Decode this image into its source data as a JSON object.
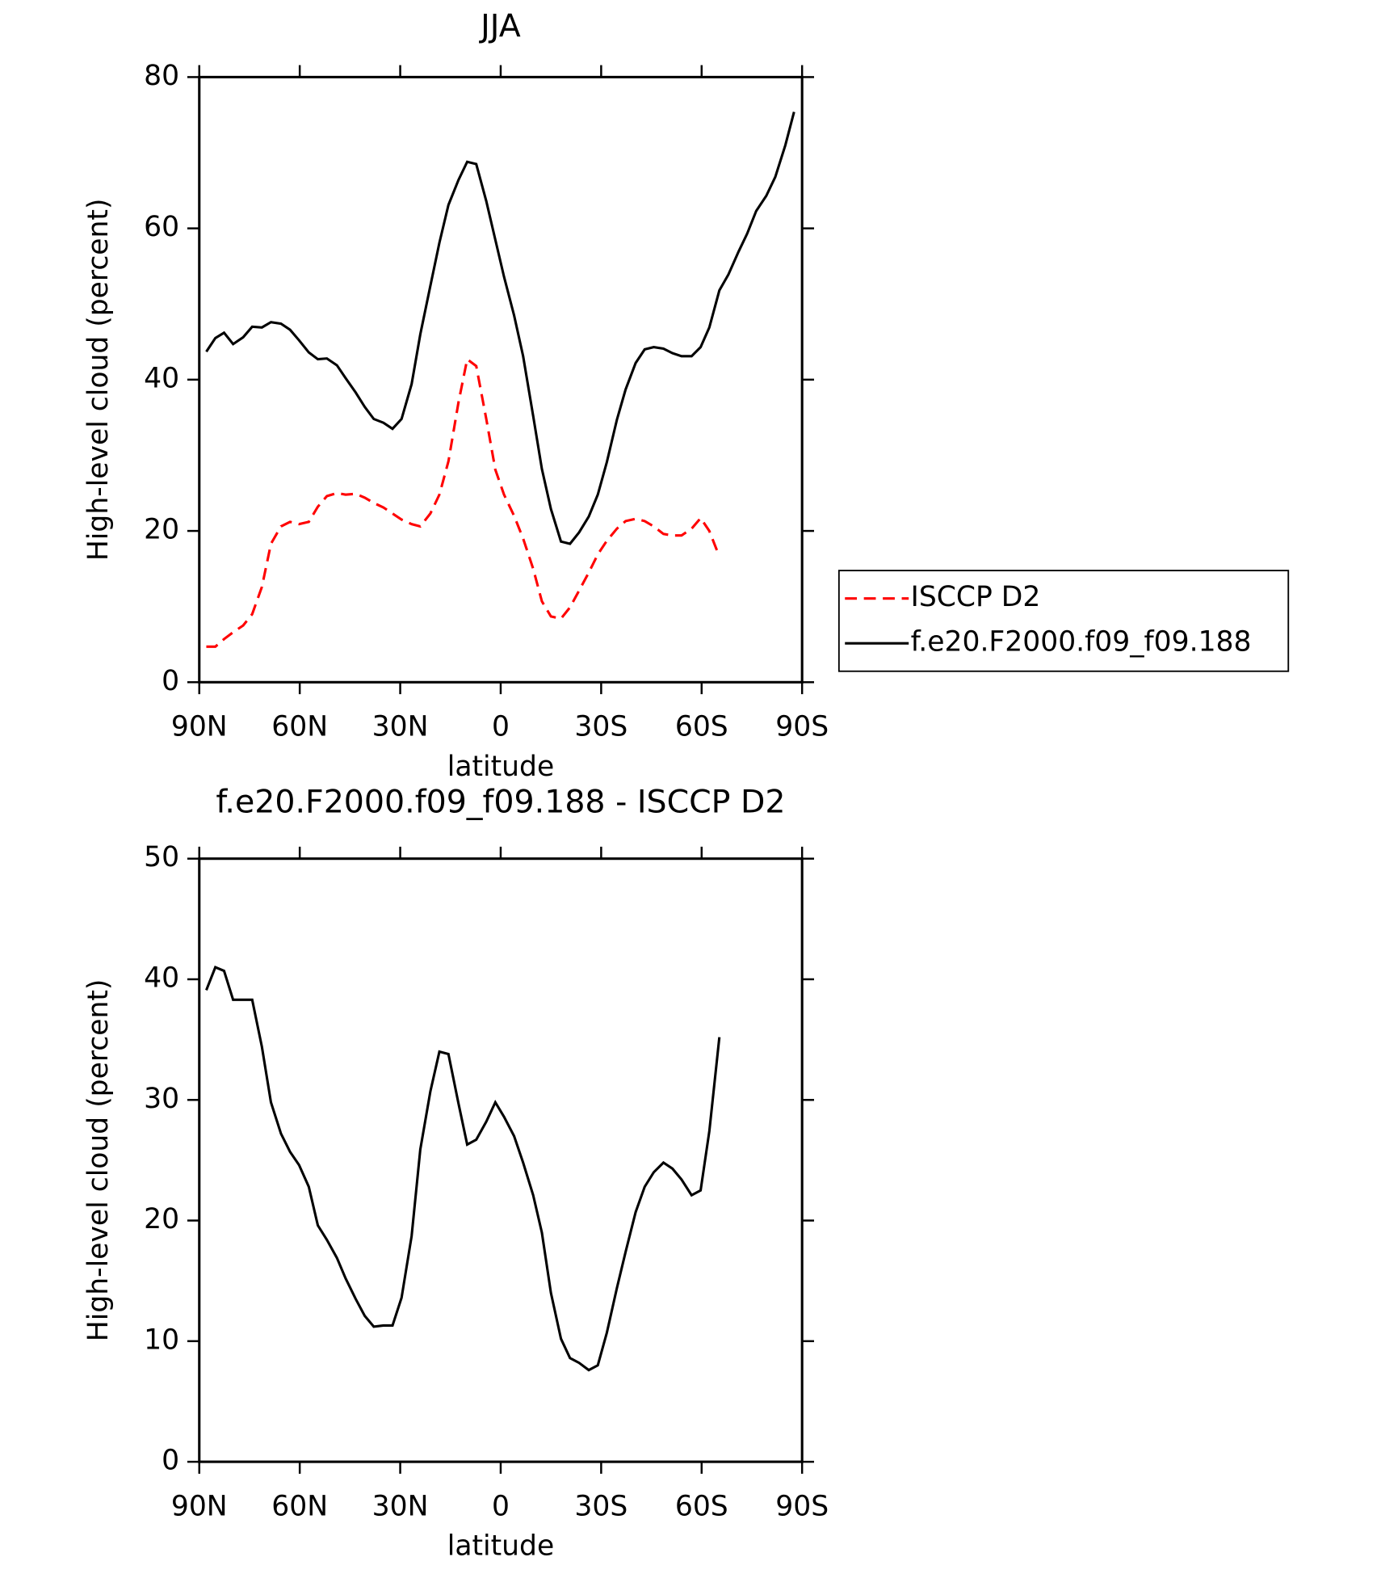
{
  "chart_data": [
    {
      "type": "line",
      "title": "JJA",
      "xlabel": "latitude",
      "ylabel": "High-level cloud (percent)",
      "x": [
        87.9,
        85.2,
        82.6,
        79.9,
        76.9,
        74.2,
        71.3,
        68.6,
        65.6,
        62.9,
        60.2,
        57.3,
        54.6,
        51.9,
        48.9,
        46.3,
        43.3,
        40.6,
        37.9,
        35.0,
        32.3,
        29.6,
        26.6,
        24.0,
        21.0,
        18.3,
        15.6,
        12.6,
        10.0,
        7.3,
        4.3,
        1.6,
        -1.0,
        -4.0,
        -6.7,
        -9.7,
        -12.3,
        -15.0,
        -18.0,
        -20.7,
        -23.4,
        -26.3,
        -29.0,
        -31.7,
        -34.7,
        -37.3,
        -40.3,
        -43.0,
        -45.7,
        -48.6,
        -51.3,
        -54.0,
        -57.0,
        -59.7,
        -62.3,
        -65.3,
        -68.0,
        -71.0,
        -73.6,
        -76.3,
        -79.3,
        -82.0,
        -85.0,
        -87.6
      ],
      "series": [
        {
          "name": "ISCCP D2",
          "color": "#ff0000",
          "dashed": true,
          "values": [
            4.7,
            4.7,
            5.7,
            6.6,
            7.5,
            9.0,
            12.6,
            18.3,
            20.6,
            21.2,
            20.9,
            21.2,
            23.2,
            24.6,
            25.0,
            24.8,
            24.9,
            24.4,
            23.7,
            23.1,
            22.3,
            21.5,
            20.9,
            20.6,
            22.3,
            24.8,
            29.2,
            37.0,
            42.7,
            41.8,
            34.8,
            28.1,
            24.8,
            22.0,
            19.0,
            15.0,
            10.7,
            8.7,
            8.4,
            9.9,
            12.1,
            14.5,
            16.9,
            18.7,
            20.3,
            21.3,
            21.6,
            21.3,
            20.6,
            19.6,
            19.4,
            19.4,
            20.3,
            21.7,
            20.0,
            16.6,
            null,
            null,
            null,
            null,
            null,
            null,
            null,
            null
          ]
        },
        {
          "name": "f.e20.F2000.f09_f09.188",
          "color": "#000000",
          "dashed": false,
          "values": [
            43.7,
            45.5,
            46.2,
            44.7,
            45.6,
            47.0,
            46.9,
            47.6,
            47.4,
            46.6,
            45.2,
            43.6,
            42.7,
            42.8,
            41.9,
            40.2,
            38.3,
            36.4,
            34.8,
            34.3,
            33.5,
            34.8,
            39.4,
            46.0,
            52.4,
            58.1,
            63.1,
            66.4,
            68.8,
            68.5,
            63.6,
            58.5,
            53.6,
            48.5,
            43.1,
            35.2,
            28.2,
            22.9,
            18.6,
            18.3,
            19.8,
            21.9,
            24.8,
            29.1,
            34.7,
            38.7,
            42.2,
            44.0,
            44.3,
            44.1,
            43.5,
            43.1,
            43.1,
            44.3,
            46.9,
            51.8,
            53.9,
            56.9,
            59.3,
            62.3,
            64.3,
            66.8,
            71.0,
            75.4
          ]
        }
      ],
      "xlim": [
        90,
        -90
      ],
      "ylim": [
        0,
        80
      ],
      "xticks": [
        {
          "value": 90,
          "label": "90N"
        },
        {
          "value": 60,
          "label": "60N"
        },
        {
          "value": 30,
          "label": "30N"
        },
        0,
        {
          "value": -30,
          "label": "30S"
        },
        {
          "value": -60,
          "label": "60S"
        },
        {
          "value": -90,
          "label": "90S"
        }
      ],
      "yticks": [
        0,
        20,
        40,
        60,
        80
      ],
      "legend": "right"
    },
    {
      "type": "line",
      "title": "f.e20.F2000.f09_f09.188 - ISCCP D2",
      "xlabel": "latitude",
      "ylabel": "High-level cloud (percent)",
      "x": [
        87.9,
        85.2,
        82.6,
        79.9,
        76.9,
        74.2,
        71.3,
        68.6,
        65.6,
        62.9,
        60.2,
        57.3,
        54.6,
        51.9,
        48.9,
        46.3,
        43.3,
        40.6,
        37.9,
        35.0,
        32.3,
        29.6,
        26.6,
        24.0,
        21.0,
        18.3,
        15.6,
        12.6,
        10.0,
        7.3,
        4.3,
        1.6,
        -1.0,
        -4.0,
        -6.7,
        -9.7,
        -12.3,
        -15.0,
        -18.0,
        -20.7,
        -23.4,
        -26.3,
        -29.0,
        -31.7,
        -34.7,
        -37.3,
        -40.3,
        -43.0,
        -45.7,
        -48.6,
        -51.3,
        -54.0,
        -57.0,
        -59.7,
        -62.3,
        -65.3
      ],
      "series": [
        {
          "color": "#000000",
          "dashed": false,
          "values": [
            39.1,
            41.0,
            40.7,
            38.3,
            38.3,
            38.3,
            34.4,
            29.8,
            27.2,
            25.7,
            24.6,
            22.8,
            19.6,
            18.4,
            16.9,
            15.2,
            13.5,
            12.1,
            11.2,
            11.3,
            11.3,
            13.6,
            18.7,
            25.9,
            30.7,
            34.0,
            33.8,
            29.7,
            26.3,
            26.7,
            28.2,
            29.8,
            28.6,
            27.0,
            24.8,
            22.1,
            19.0,
            14.0,
            10.2,
            8.6,
            8.2,
            7.6,
            8.0,
            10.7,
            14.4,
            17.4,
            20.7,
            22.8,
            24.0,
            24.8,
            24.3,
            23.4,
            22.1,
            22.5,
            27.4,
            35.2
          ]
        }
      ],
      "xlim": [
        90,
        -90
      ],
      "ylim": [
        0,
        50
      ],
      "xticks": [
        {
          "value": 90,
          "label": "90N"
        },
        {
          "value": 60,
          "label": "60N"
        },
        {
          "value": 30,
          "label": "30N"
        },
        0,
        {
          "value": -30,
          "label": "30S"
        },
        {
          "value": -60,
          "label": "60S"
        },
        {
          "value": -90,
          "label": "90S"
        }
      ],
      "yticks": [
        0,
        10,
        20,
        30,
        40,
        50
      ]
    }
  ]
}
